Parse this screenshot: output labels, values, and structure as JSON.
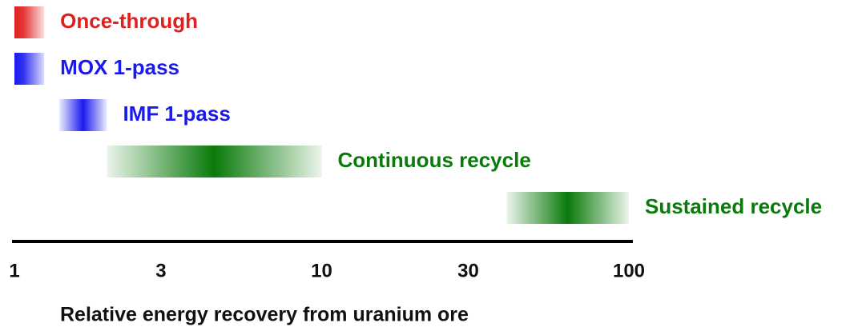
{
  "chart_data": {
    "type": "range",
    "categories": [
      "Once-through",
      "MOX 1-pass",
      "IMF 1-pass",
      "Continuous recycle",
      "Sustained recycle"
    ],
    "low": [
      1,
      1,
      1.4,
      2,
      40
    ],
    "high": [
      1.25,
      1.25,
      2,
      10,
      100
    ],
    "colors": [
      "#e02020",
      "#1a1aee",
      "#1a1aee",
      "#0a7a0a",
      "#0a7a0a"
    ],
    "fade": [
      "right",
      "right",
      "both",
      "both",
      "both"
    ],
    "x_label": "Relative energy recovery from uranium ore",
    "xscale": "log",
    "xlim": [
      1,
      100
    ],
    "xticks": [
      1,
      3,
      10,
      30,
      100
    ],
    "grid": false
  }
}
